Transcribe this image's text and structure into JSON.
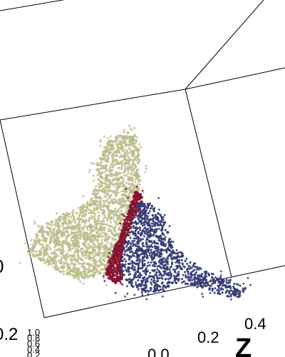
{
  "chart_data": {
    "type": "scatter",
    "projection": "3d",
    "axes": {
      "x": {
        "label": "",
        "tick_labels": [
          "0.0",
          "0.2",
          "0.4"
        ]
      },
      "y": {
        "label": "",
        "tick_labels": [
          "0.2",
          "0.4",
          "0.6",
          "0.8",
          "1.0"
        ]
      },
      "z": {
        "label": "Z",
        "tick_labels": [
          "0.0",
          "0.2",
          "0.4"
        ]
      },
      "left_edge_tick_label": "0",
      "bottom_left_tick_label": "0.2"
    },
    "grid": false,
    "legend": "none",
    "clusters": [
      {
        "color": "#d8d8a4",
        "edge": "#8c8c5c",
        "approx_points": 9000,
        "region": "upper-left lobe, elongated toward the top"
      },
      {
        "color": "#a4133c",
        "edge": "#5e0a20",
        "approx_points": 1800,
        "region": "narrow band between the other two clusters"
      },
      {
        "color": "#3f4a8a",
        "edge": "#1d2450",
        "approx_points": 5000,
        "region": "lower-right lobe, trailing to the right"
      }
    ]
  }
}
